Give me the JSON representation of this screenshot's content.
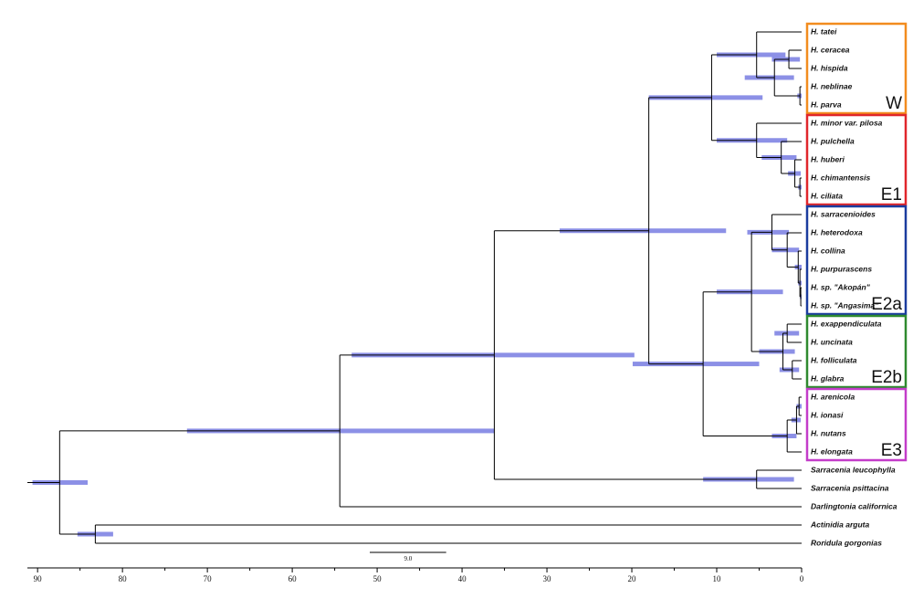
{
  "tree": {
    "age": 87.4,
    "hpd": [
      90.6,
      84.1
    ],
    "children": [
      {
        "age": 54.4,
        "hpd": [
          72.4,
          36.2
        ],
        "children": [
          {
            "age": 36.2,
            "hpd": [
              53.0,
              19.7
            ],
            "children": [
              {
                "age": 18.0,
                "hpd": [
                  28.5,
                  8.9
                ],
                "children": [
                  {
                    "age": 10.6,
                    "hpd": [
                      18.0,
                      4.6
                    ],
                    "children": [
                      {
                        "age": 5.3,
                        "hpd": [
                          10.0,
                          1.9
                        ],
                        "clade": {
                          "label": "W",
                          "color": "#f28c1e"
                        },
                        "children": [
                          {
                            "label": "H. tatei"
                          },
                          {
                            "age": 3.2,
                            "hpd": [
                              6.7,
                              0.9
                            ],
                            "children": [
                              {
                                "age": 1.5,
                                "hpd": [
                                  3.5,
                                  0.2
                                ],
                                "children": [
                                  {
                                    "label": "H. ceracea"
                                  },
                                  {
                                    "label": "H. hispida"
                                  }
                                ]
                              },
                              {
                                "age": 0.2,
                                "hpd": [
                                  0.5,
                                  0
                                ],
                                "children": [
                                  {
                                    "label": "H. neblinae"
                                  },
                                  {
                                    "label": "H. parva"
                                  }
                                ]
                              }
                            ]
                          }
                        ]
                      },
                      {
                        "age": 5.3,
                        "hpd": [
                          10.0,
                          1.7
                        ],
                        "clade": {
                          "label": "E1",
                          "color": "#e0262b"
                        },
                        "children": [
                          {
                            "label": "H. minor var. pilosa"
                          },
                          {
                            "age": 2.4,
                            "hpd": [
                              4.7,
                              0.6
                            ],
                            "children": [
                              {
                                "label": "H. pulchella"
                              },
                              {
                                "age": 0.8,
                                "hpd": [
                                  1.6,
                                  0.1
                                ],
                                "children": [
                                  {
                                    "label": "H. huberi"
                                  },
                                  {
                                    "age": 0.2,
                                    "hpd": [
                                      0.4,
                                      0
                                    ],
                                    "children": [
                                      {
                                        "label": "H. chimantensis"
                                      },
                                      {
                                        "label": "H. ciliata"
                                      }
                                    ]
                                  }
                                ]
                              }
                            ]
                          }
                        ]
                      }
                    ]
                  },
                  {
                    "age": 11.6,
                    "hpd": [
                      19.9,
                      5.0
                    ],
                    "children": [
                      {
                        "age": 5.9,
                        "hpd": [
                          10.0,
                          2.2
                        ],
                        "children": [
                          {
                            "age": 3.5,
                            "hpd": [
                              6.4,
                              1.5
                            ],
                            "clade": {
                              "label": "E2a",
                              "color": "#1b3c9e"
                            },
                            "children": [
                              {
                                "label": "H. sarracenioides"
                              },
                              {
                                "age": 1.7,
                                "hpd": [
                                  3.5,
                                  0.3
                                ],
                                "children": [
                                  {
                                    "label": "H. heterodoxa"
                                  },
                                  {
                                    "age": 0.4,
                                    "hpd": [
                                      0.8,
                                      0
                                    ],
                                    "children": [
                                      {
                                        "label": "H. collina"
                                      },
                                      {
                                        "age": 0.2,
                                        "hpd": [
                                          0.4,
                                          0
                                        ],
                                        "children": [
                                          {
                                            "label": "H. purpurascens"
                                          },
                                          {
                                            "age": 0.1,
                                            "hpd": [
                                              0.2,
                                              0
                                            ],
                                            "children": [
                                              {
                                                "label": "H. sp. \"Akopán\""
                                              },
                                              {
                                                "label": "H. sp. \"Angasima\""
                                              }
                                            ]
                                          }
                                        ]
                                      }
                                    ]
                                  }
                                ]
                              }
                            ]
                          },
                          {
                            "age": 2.2,
                            "hpd": [
                              5.0,
                              0.8
                            ],
                            "clade": {
                              "label": "E2b",
                              "color": "#2f8a2f"
                            },
                            "children": [
                              {
                                "age": 1.7,
                                "hpd": [
                                  3.2,
                                  0.3
                                ],
                                "children": [
                                  {
                                    "label": "H. exappendiculata"
                                  },
                                  {
                                    "label": "H. uncinata"
                                  }
                                ]
                              },
                              {
                                "age": 1.1,
                                "hpd": [
                                  2.6,
                                  0.3
                                ],
                                "children": [
                                  {
                                    "label": "H. folliculata"
                                  },
                                  {
                                    "label": "H. glabra"
                                  }
                                ]
                              }
                            ]
                          }
                        ]
                      },
                      {
                        "age": 1.7,
                        "hpd": [
                          3.5,
                          0.6
                        ],
                        "clade": {
                          "label": "E3",
                          "color": "#c33cc9"
                        },
                        "children": [
                          {
                            "age": 0.6,
                            "hpd": [
                              1.2,
                              0.1
                            ],
                            "children": [
                              {
                                "age": 0.3,
                                "hpd": [
                                  0.6,
                                  0
                                ],
                                "children": [
                                  {
                                    "label": "H. arenicola"
                                  },
                                  {
                                    "label": "H. ionasi"
                                  }
                                ]
                              },
                              {
                                "label": "H. nutans"
                              }
                            ]
                          },
                          {
                            "label": "H. elongata"
                          }
                        ]
                      }
                    ]
                  }
                ]
              },
              {
                "age": 5.3,
                "hpd": [
                  11.6,
                  0.9
                ],
                "children": [
                  {
                    "label": "Sarracenia leucophylla"
                  },
                  {
                    "label": "Sarracenia psittacina"
                  }
                ]
              }
            ]
          },
          {
            "label": "Darlingtonia californica"
          }
        ]
      },
      {
        "age": 83.2,
        "hpd": [
          85.3,
          81.1
        ],
        "children": [
          {
            "label": "Actinidia arguta"
          },
          {
            "label": "Roridula gorgonias"
          }
        ]
      }
    ]
  },
  "axis": {
    "xlim": [
      91.2,
      0
    ],
    "xticks": [
      90,
      80,
      70,
      60,
      50,
      40,
      30,
      20,
      10,
      0
    ]
  },
  "scale_bar": {
    "length": {
      "value": 9,
      "label": "9.0"
    }
  }
}
